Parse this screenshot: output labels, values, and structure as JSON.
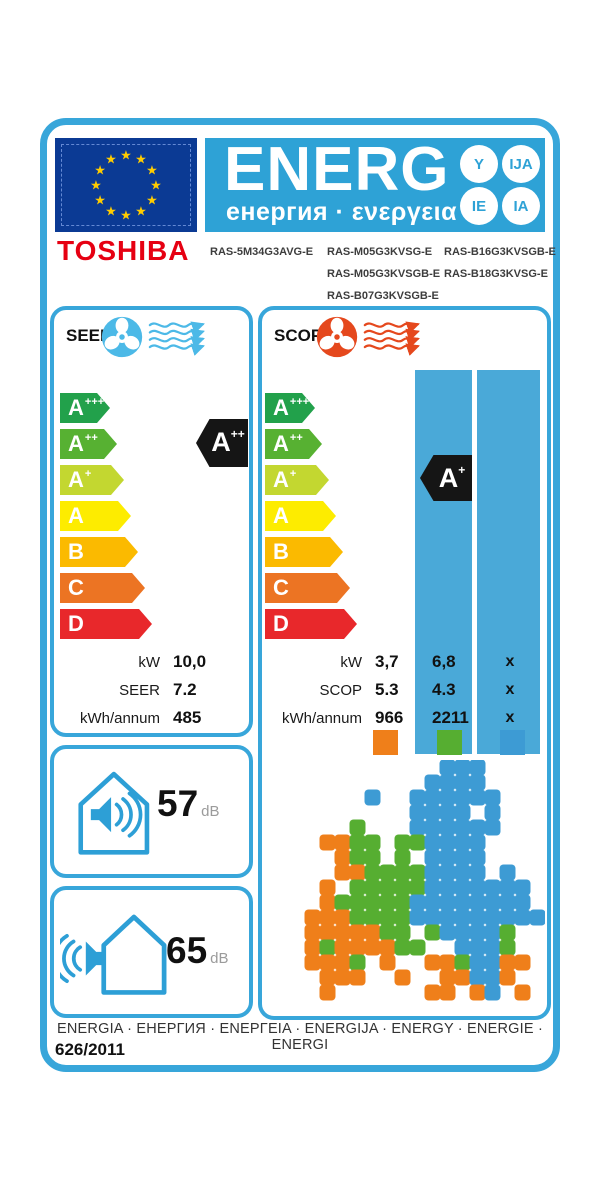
{
  "header": {
    "brand": "TOSHIBA",
    "energ_title": "ENERG",
    "energ_subtitle": "енергия · ενεργεια",
    "circles": [
      "Y",
      "IJA",
      "IE",
      "IA"
    ],
    "models": {
      "col1": [
        "RAS-5M34G3AVG-E"
      ],
      "col2": [
        "RAS-M05G3KVSG-E",
        "RAS-M05G3KVSGB-E",
        "RAS-B07G3KVSGB-E"
      ],
      "col3": [
        "RAS-B16G3KVSGB-E",
        "RAS-B18G3KVSG-E"
      ]
    }
  },
  "energy_classes": [
    {
      "label": "A",
      "sup": "+++",
      "color": "#22a14b"
    },
    {
      "label": "A",
      "sup": "++",
      "color": "#57b132"
    },
    {
      "label": "A",
      "sup": "+",
      "color": "#c3d730"
    },
    {
      "label": "A",
      "sup": "",
      "color": "#fdec00"
    },
    {
      "label": "B",
      "sup": "",
      "color": "#fbba00"
    },
    {
      "label": "C",
      "sup": "",
      "color": "#ec7423"
    },
    {
      "label": "D",
      "sup": "",
      "color": "#e8282b"
    }
  ],
  "seer_section": {
    "title": "SEER",
    "rating_base": "A",
    "rating_sup": "++",
    "table": {
      "rows": [
        {
          "label": "kW",
          "value": "10,0"
        },
        {
          "label": "SEER",
          "value": "7.2"
        },
        {
          "label": "kWh/annum",
          "value": "485"
        }
      ]
    }
  },
  "scop_section": {
    "title": "SCOP",
    "rating_base": "A",
    "rating_sup": "+",
    "table": {
      "rows": [
        {
          "label": "kW",
          "v1": "3,7",
          "v2": "6,8",
          "v3": "x"
        },
        {
          "label": "SCOP",
          "v1": "5.3",
          "v2": "4.3",
          "v3": "x"
        },
        {
          "label": "kWh/annum",
          "v1": "966",
          "v2": "2211",
          "v3": "x"
        }
      ],
      "legend_colors": [
        "#ef7f1a",
        "#56ae31",
        "#3d9bd4"
      ]
    }
  },
  "noise": {
    "indoor_db": "57",
    "outdoor_db": "65",
    "unit": "dB"
  },
  "footer": {
    "energy_words": "ENERGIA · ЕНЕРГИЯ · ΕΝΕΡΓΕΙΑ · ENERGIJA · ENERGY · ENERGIE · ENERGI",
    "regulation": "626/2011"
  },
  "map": {
    "palette": {
      "O": "#ef7f1a",
      "G": "#56ae31",
      "B": "#3d9bd4"
    },
    "rows": [
      "..........BBB....",
      ".........BBBB....",
      ".....B..BBBBBB...",
      "........BBBB.B...",
      "....G...BBBBBB...",
      "..OOGG.GGBBBB....",
      "...OGG.G.BBBB....",
      "...OOGGGGBBBB.B..",
      "..O.GGGGGBBBBBBB.",
      "..OGGGGGBBBBBBBB.",
      ".OOOGGGGBBBBBBBBB",
      ".OOOOOGG.GBBBBG..",
      ".OGOOOOGG..BBBG..",
      ".OOOG.O..OOGBBOO.",
      "..OOO..O..OOBBO..",
      "..O......OO.OB.O."
    ]
  },
  "colors": {
    "label_blue": "#38a6da",
    "band_blue": "#2ea2d6",
    "eu_flag_blue": "#0b3a94",
    "star_yellow": "#ffcc00",
    "brand_red": "#e60012",
    "seer_accent": "#4cb9e7",
    "scop_accent": "#e5481d",
    "house_blue": "#2d9fd6",
    "black_arrow": "#151515"
  }
}
